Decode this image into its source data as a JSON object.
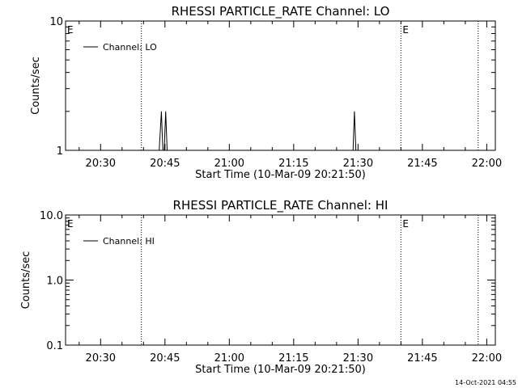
{
  "footer": {
    "timestamp": "14-Oct-2021 04:55"
  },
  "chart_data": [
    {
      "type": "line",
      "title": "RHESSI PARTICLE_RATE Channel: LO",
      "xlabel": "Start Time (10-Mar-09 20:21:50)",
      "ylabel": "Counts/sec",
      "yscale": "log",
      "ylim": [
        1,
        10
      ],
      "ytick_labels": [
        "1",
        "10"
      ],
      "xlim": [
        "20:21:50",
        "22:02:00"
      ],
      "xtick_labels": [
        "20:30",
        "20:45",
        "21:00",
        "21:15",
        "21:30",
        "21:45",
        "22:00"
      ],
      "legend": {
        "placement": "top-left",
        "entries": [
          "Channel: LO"
        ]
      },
      "vertical_markers": [
        {
          "time": "20:39:30",
          "label": ""
        },
        {
          "time": "21:40:00",
          "label": "E"
        },
        {
          "time": "21:58:00",
          "label": ""
        }
      ],
      "start_marker_label": "E",
      "series": [
        {
          "name": "Channel: LO",
          "times": [
            "20:43:40",
            "20:44:10",
            "20:44:30",
            "20:44:50",
            "20:45:10",
            "20:45:30",
            "20:45:50",
            "21:28:50",
            "21:29:10",
            "21:29:30"
          ],
          "values": [
            1,
            2,
            1,
            1,
            2,
            1,
            1,
            1,
            2,
            1
          ]
        }
      ]
    },
    {
      "type": "line",
      "title": "RHESSI PARTICLE_RATE Channel: HI",
      "xlabel": "Start Time (10-Mar-09 20:21:50)",
      "ylabel": "Counts/sec",
      "yscale": "log",
      "ylim": [
        0.1,
        10
      ],
      "ytick_labels": [
        "0.1",
        "1.0",
        "10.0"
      ],
      "xlim": [
        "20:21:50",
        "22:02:00"
      ],
      "xtick_labels": [
        "20:30",
        "20:45",
        "21:00",
        "21:15",
        "21:30",
        "21:45",
        "22:00"
      ],
      "legend": {
        "placement": "top-left",
        "entries": [
          "Channel: HI"
        ]
      },
      "vertical_markers": [
        {
          "time": "20:39:30",
          "label": ""
        },
        {
          "time": "21:40:00",
          "label": "E"
        },
        {
          "time": "21:58:00",
          "label": ""
        }
      ],
      "start_marker_label": "E",
      "series": [
        {
          "name": "Channel: HI",
          "times": [],
          "values": []
        }
      ]
    }
  ]
}
